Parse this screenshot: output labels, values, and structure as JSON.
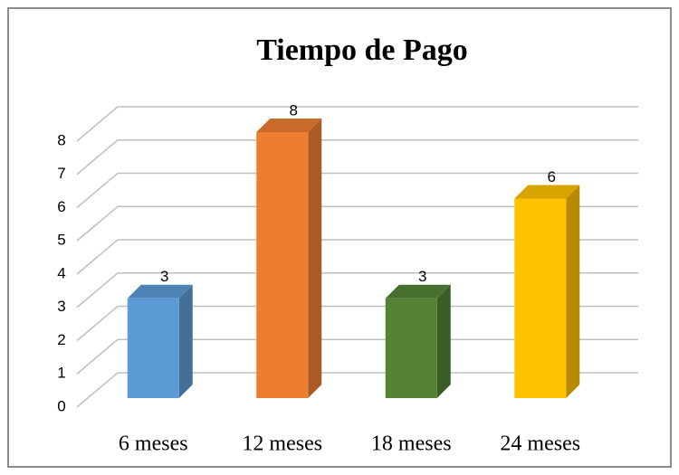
{
  "chart_data": {
    "type": "bar3d",
    "title": "Tiempo de Pago",
    "categories": [
      "6 meses",
      "12 meses",
      "18 meses",
      "24 meses"
    ],
    "values": [
      3,
      8,
      3,
      6
    ],
    "colors": [
      "#5b9bd5",
      "#ed7d31",
      "#548235",
      "#ffc000"
    ],
    "ylim": [
      0,
      8
    ],
    "yticks": [
      0,
      1,
      2,
      3,
      4,
      5,
      6,
      7,
      8
    ],
    "grid": true
  }
}
